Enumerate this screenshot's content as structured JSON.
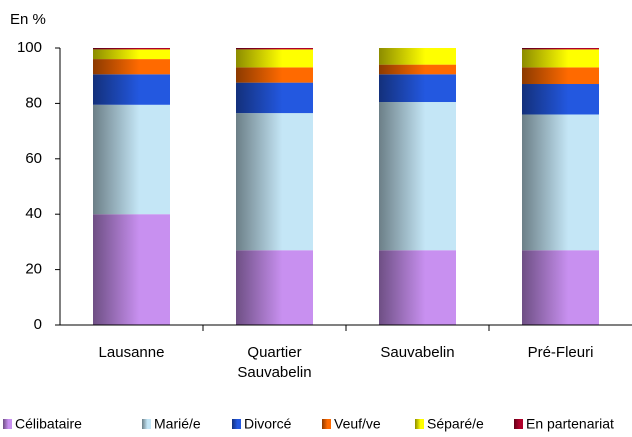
{
  "chart_data": {
    "type": "stacked_bar",
    "y_axis_label": "En %",
    "categories": [
      "Lausanne",
      "Quartier Sauvabelin",
      "Sauvabelin",
      "Pré-Fleuri"
    ],
    "series": [
      {
        "name": "Célibataire",
        "color": "#c890f0",
        "values": [
          40,
          27,
          27,
          27
        ]
      },
      {
        "name": "Marié/e",
        "color": "#c4e6f6",
        "values": [
          39.5,
          49.5,
          53.5,
          49
        ]
      },
      {
        "name": "Divorcé",
        "color": "#2358e0",
        "values": [
          11,
          11,
          10,
          11
        ]
      },
      {
        "name": "Veuf/ve",
        "color": "#ff6a00",
        "values": [
          5.5,
          5.5,
          3.5,
          6
        ]
      },
      {
        "name": "Séparé/e",
        "color": "#ffff00",
        "values": [
          3.5,
          6.5,
          6,
          6.5
        ]
      },
      {
        "name": "En partenariat",
        "color": "#b0002a",
        "values": [
          0.5,
          0.5,
          0,
          0.5
        ]
      }
    ],
    "ylim": [
      0,
      100
    ],
    "yticks": [
      0,
      20,
      40,
      60,
      80,
      100
    ],
    "grid": false,
    "legend": "bottom"
  }
}
